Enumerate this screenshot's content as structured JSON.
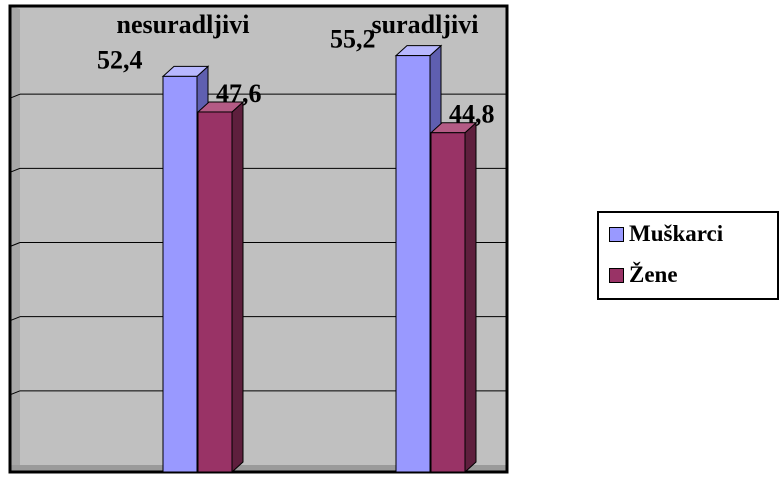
{
  "chart_data": {
    "type": "bar",
    "categories": [
      "nesuradljivi",
      "suradljivi"
    ],
    "series": [
      {
        "name": "Muškarci",
        "values": [
          52.4,
          55.2
        ],
        "labels": [
          "52,4",
          "55,2"
        ]
      },
      {
        "name": "Žene",
        "values": [
          47.6,
          44.8
        ],
        "labels": [
          "47,6",
          "44,8"
        ]
      }
    ],
    "ylim": [
      0,
      60
    ],
    "grid": true,
    "legend_position": "right",
    "colors": {
      "Muškarci": "#9999ff",
      "Žene": "#993366",
      "wall": "#c0c0c0"
    }
  }
}
